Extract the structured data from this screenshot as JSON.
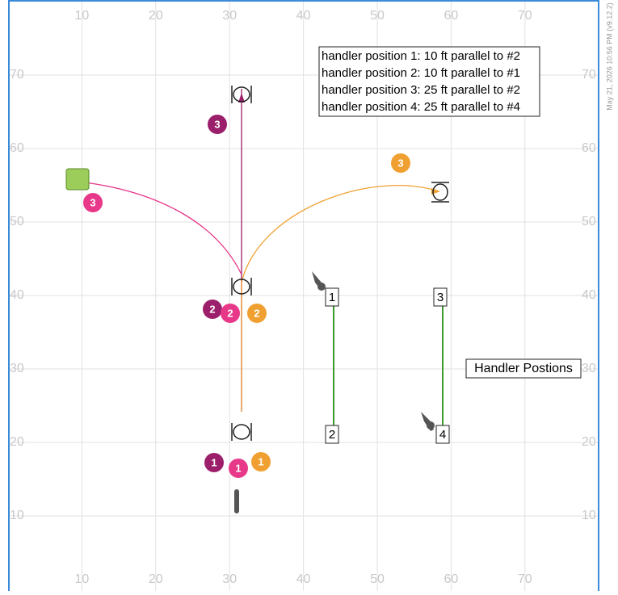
{
  "axis": {
    "x_ticks": [
      10,
      20,
      30,
      40,
      50,
      60,
      70
    ],
    "y_ticks": [
      10,
      20,
      30,
      40,
      50,
      60,
      70
    ]
  },
  "legend": {
    "lines": [
      "handler position 1: 10 ft parallel to #2",
      "handler position 2: 10 ft parallel to #1",
      "handler position 3: 25 ft parallel to #2",
      "handler position 4: 25 ft parallel to #4"
    ]
  },
  "label": "Handler Postions",
  "timestamp": "May 21, 2026 10:56 PM (v9.12.2)",
  "badges": [
    {
      "label": "1"
    },
    {
      "label": "2"
    },
    {
      "label": "3"
    },
    {
      "label": "1"
    },
    {
      "label": "2"
    },
    {
      "label": "3"
    },
    {
      "label": "1"
    },
    {
      "label": "2"
    },
    {
      "label": "3"
    }
  ],
  "posts": [
    {
      "label": "1"
    },
    {
      "label": "2"
    },
    {
      "label": "3"
    },
    {
      "label": "4"
    }
  ]
}
